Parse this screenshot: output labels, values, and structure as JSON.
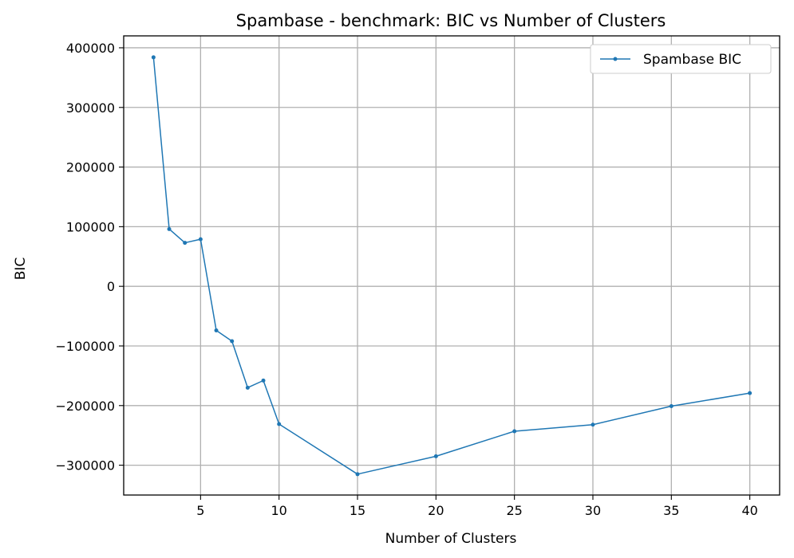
{
  "chart_data": {
    "type": "line",
    "title": "Spambase - benchmark: BIC vs Number of Clusters",
    "xlabel": "Number of Clusters",
    "ylabel": "BIC",
    "xlim": [
      0.1,
      41.9
    ],
    "ylim": [
      -350000,
      420000
    ],
    "xticks": [
      5,
      10,
      15,
      20,
      25,
      30,
      35,
      40
    ],
    "yticks": [
      -300000,
      -200000,
      -100000,
      0,
      100000,
      200000,
      300000,
      400000
    ],
    "ytick_labels": [
      "−300000",
      "−200000",
      "−100000",
      "0",
      "100000",
      "200000",
      "300000",
      "400000"
    ],
    "grid": true,
    "legend_position": "top-right",
    "series": [
      {
        "name": "Spambase BIC",
        "color": "#1f77b4",
        "x": [
          2,
          3,
          4,
          5,
          6,
          7,
          8,
          9,
          10,
          15,
          20,
          25,
          30,
          35,
          40
        ],
        "y": [
          384000,
          96000,
          73000,
          79000,
          -74000,
          -92000,
          -170000,
          -158000,
          -231000,
          -315000,
          -285000,
          -243000,
          -232000,
          -201000,
          -179000
        ]
      }
    ]
  }
}
